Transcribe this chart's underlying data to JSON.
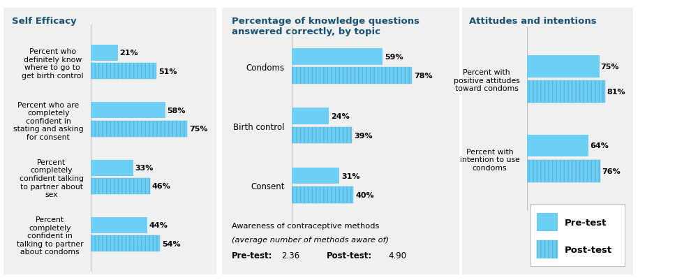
{
  "panel1_title": "Self Efficacy",
  "panel1_categories": [
    "Percent who\ndefinitely know\nwhere to go to\nget birth control",
    "Percent who are\ncompletely\nconfident in\nstating and asking\nfor consent",
    "Percent\ncompletely\nconfident talking\nto partner about\nsex",
    "Percent\ncompletely\nconfident in\ntalking to partner\nabout condoms"
  ],
  "panel1_pretest": [
    21,
    58,
    33,
    44
  ],
  "panel1_posttest": [
    51,
    75,
    46,
    54
  ],
  "panel2_title": "Percentage of knowledge questions\nanswered correctly, by topic",
  "panel2_categories": [
    "Condoms",
    "Birth control",
    "Consent"
  ],
  "panel2_pretest": [
    59,
    24,
    31
  ],
  "panel2_posttest": [
    78,
    39,
    40
  ],
  "panel2_awareness_line1": "Awareness of contraceptive methods",
  "panel2_awareness_line2": "(average number of methods aware of)",
  "panel2_pretest_label": "Pre-test:",
  "panel2_posttest_label": "Post-test:",
  "panel2_pretest_val": "2.36",
  "panel2_posttest_val": "4.90",
  "panel3_title": "Attitudes and intentions",
  "panel3_categories": [
    "Percent with\npositive attitudes\ntoward condoms",
    "Percent with\nintention to use\ncondoms"
  ],
  "panel3_pretest": [
    75,
    64
  ],
  "panel3_posttest": [
    81,
    76
  ],
  "pretest_color": "#6dcff6",
  "posttest_hatch": "|||",
  "posttest_color": "#6dcff6",
  "title_color": "#1a5276",
  "bg_color": "#ffffff",
  "panel_bg": "#f0f0f0",
  "bar_height": 0.28,
  "title_fontsize": 9.5,
  "value_fontsize": 8,
  "category_fontsize": 7.8,
  "legend_fontsize": 9.5
}
